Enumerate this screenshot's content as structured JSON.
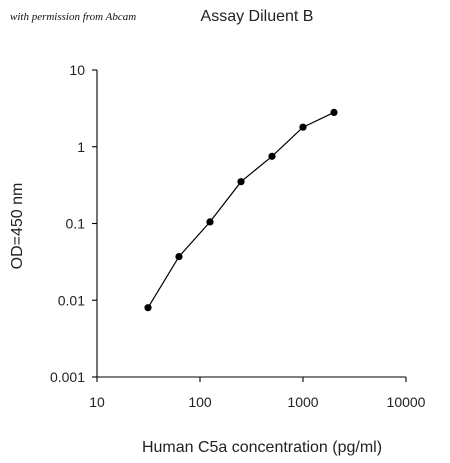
{
  "permission_note": "with permission from Abcam",
  "chart_data": {
    "type": "line",
    "title": "Assay Diluent B",
    "xlabel": "Human C5a concentration (pg/ml)",
    "ylabel": "OD=450 nm",
    "x_scale": "log",
    "y_scale": "log",
    "xlim": [
      10,
      10000
    ],
    "ylim": [
      0.001,
      10
    ],
    "x_ticks": [
      "10",
      "100",
      "1000",
      "10000"
    ],
    "y_ticks": [
      "0.001",
      "0.01",
      "0.1",
      "1",
      "10"
    ],
    "grid": false,
    "legend": "none",
    "series": [
      {
        "x": [
          31.25,
          62.5,
          125,
          250,
          500,
          1000,
          2000
        ],
        "y": [
          0.008,
          0.037,
          0.105,
          0.35,
          0.75,
          1.8,
          2.8
        ],
        "color": "#000000"
      }
    ]
  }
}
